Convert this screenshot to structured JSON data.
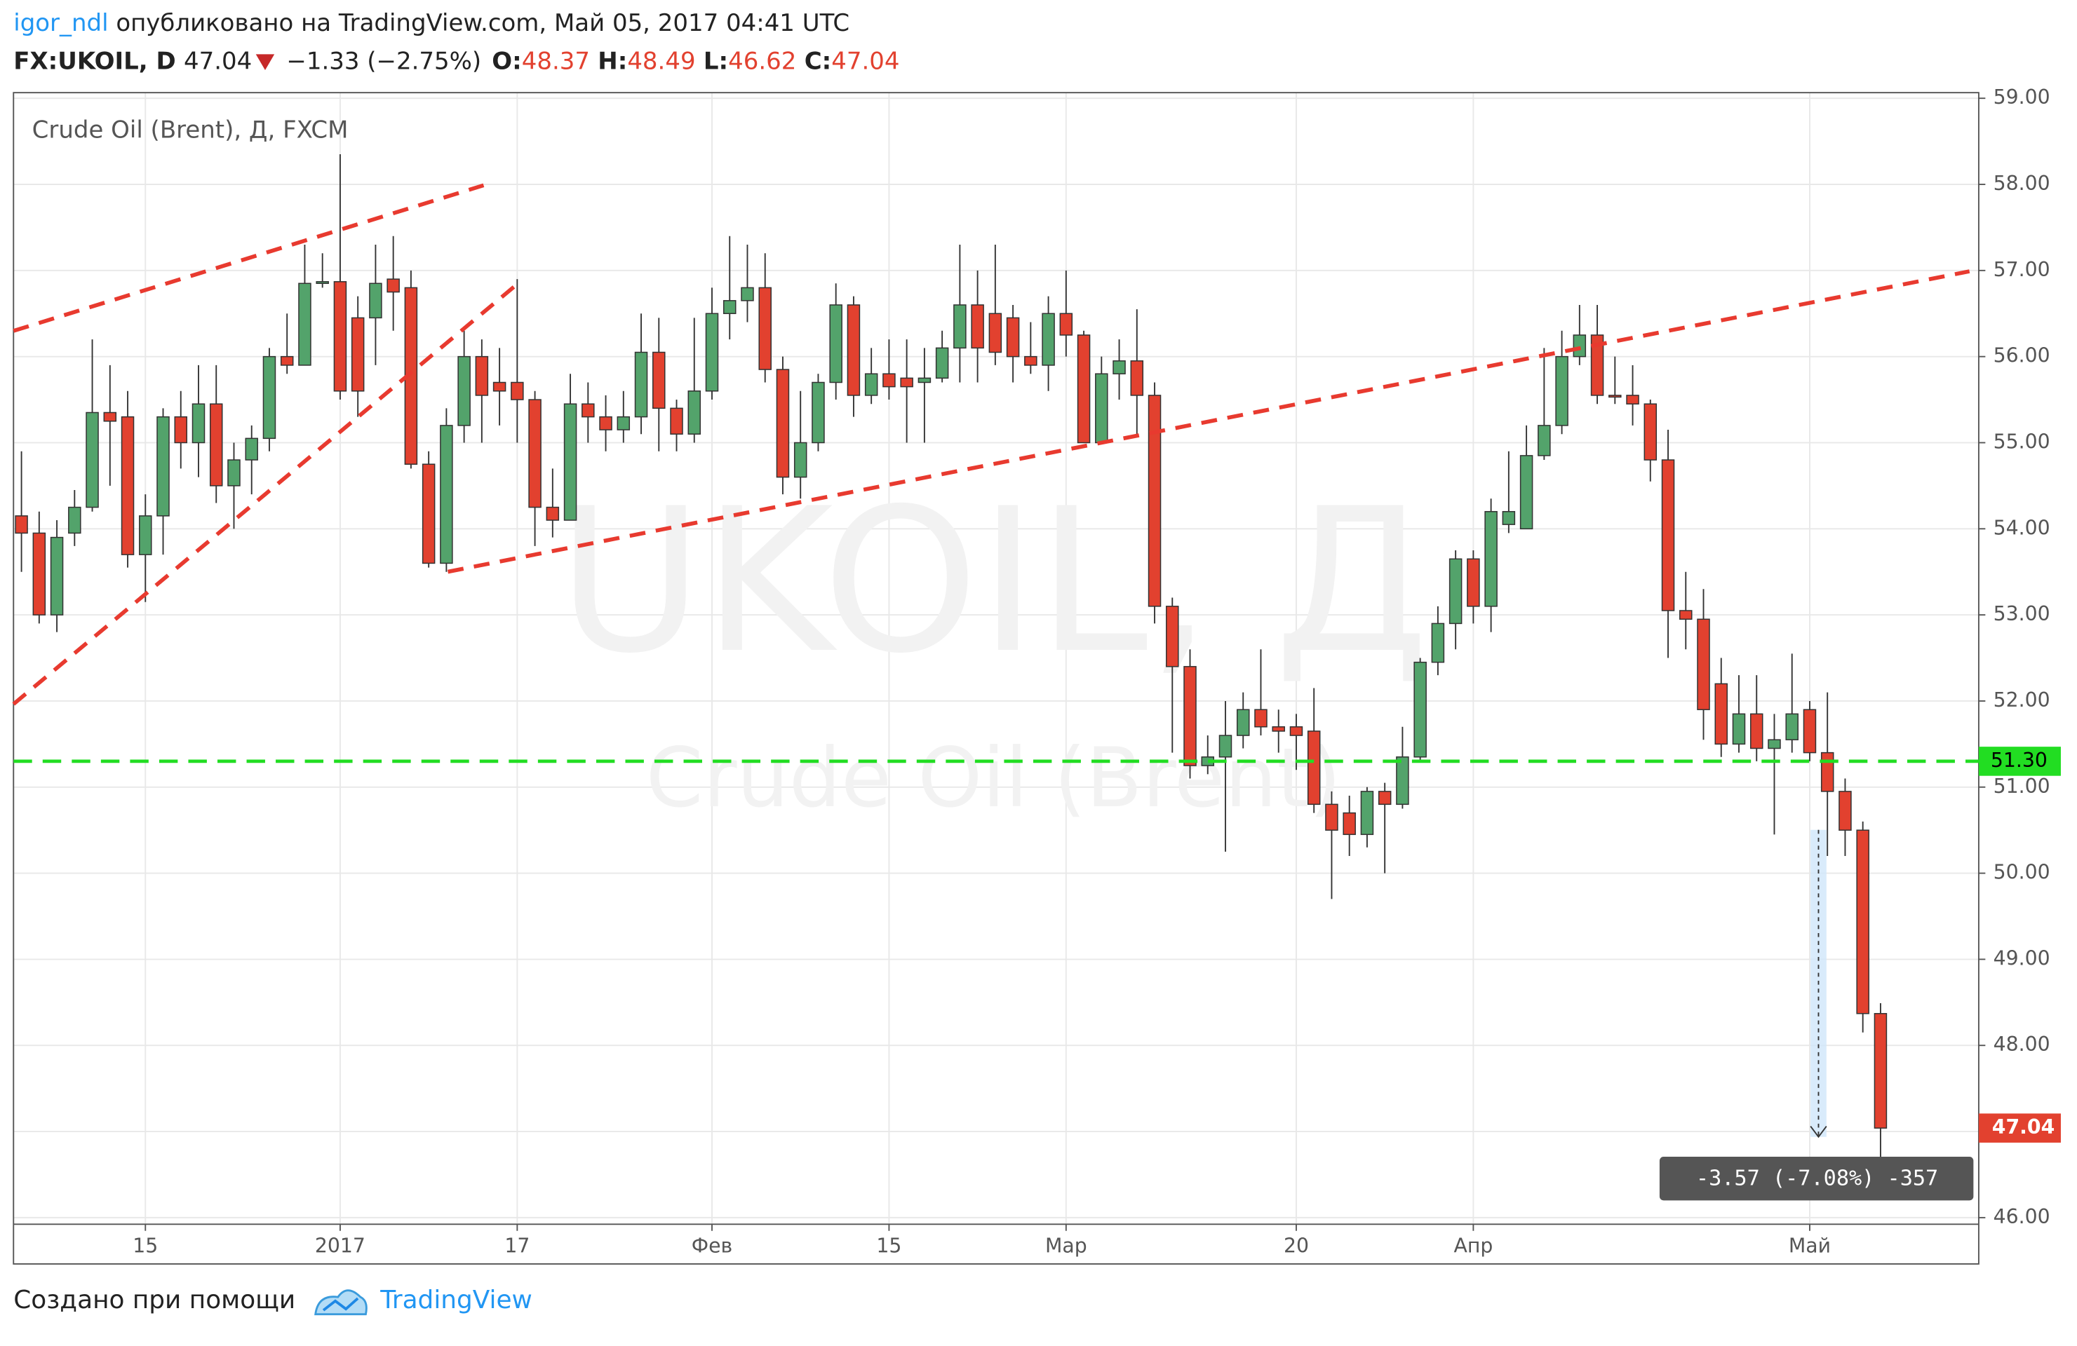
{
  "header": {
    "author": "igor_ndl",
    "published": " опубликовано на TradingView.com, Май 05, 2017 04:41 UTC",
    "symbol": "FX:UKOIL, D",
    "change": "−1.33 (−2.75%)",
    "o_label": "O:",
    "h_label": "H:",
    "l_label": "L:",
    "c_label": "C:"
  },
  "chart_data": {
    "type": "candlestick",
    "title": "Crude Oil (Brent), Д, FXCM",
    "watermark": "UKOIL, Д",
    "watermark_sub": "Crude Oil (Brent)",
    "up_color": "#53a36b",
    "down_color": "#e2412f",
    "grid": true,
    "categories": [
      null,
      null,
      null,
      null,
      null,
      null,
      null,
      "15",
      null,
      null,
      null,
      null,
      null,
      null,
      null,
      null,
      null,
      null,
      "2017",
      null,
      null,
      null,
      null,
      null,
      null,
      null,
      null,
      null,
      "17",
      null,
      null,
      null,
      null,
      null,
      null,
      null,
      null,
      null,
      null,
      "Фев",
      null,
      null,
      null,
      null,
      null,
      null,
      null,
      null,
      null,
      "15",
      null,
      null,
      null,
      null,
      null,
      null,
      null,
      null,
      null,
      "Мар",
      null,
      null,
      null,
      null,
      null,
      null,
      null,
      null,
      null,
      null,
      null,
      null,
      "20",
      null,
      null,
      null,
      null,
      null,
      null,
      null,
      null,
      null,
      "Апр",
      null,
      null,
      null,
      null,
      null,
      null,
      null,
      null,
      null,
      null,
      null,
      null,
      null,
      null,
      null,
      null,
      null,
      null,
      "Май",
      null,
      null,
      null,
      null
    ],
    "open": [
      54.15,
      53.95,
      53.0,
      53.95,
      54.25,
      55.35,
      55.3,
      53.7,
      54.15,
      55.3,
      55.0,
      55.45,
      54.5,
      54.8,
      55.05,
      56.0,
      55.9,
      56.85,
      56.87,
      56.45,
      56.45,
      56.9,
      56.8,
      54.75,
      53.6,
      55.2,
      56.0,
      55.7,
      55.7,
      55.5,
      54.25,
      54.1,
      55.45,
      55.3,
      55.15,
      55.3,
      56.05,
      55.4,
      55.1,
      55.6,
      56.5,
      56.65,
      56.8,
      55.85,
      54.6,
      55.0,
      55.7,
      56.6,
      55.55,
      55.8,
      55.75,
      55.7,
      55.75,
      56.1,
      56.6,
      56.5,
      56.45,
      56.0,
      55.9,
      56.5,
      56.25,
      55.0,
      55.8,
      55.95,
      55.55,
      53.1,
      52.4,
      51.25,
      51.35,
      51.6,
      51.9,
      51.7,
      51.7,
      51.65,
      50.8,
      50.7,
      50.45,
      50.95,
      50.8,
      51.35,
      52.45,
      52.9,
      53.65,
      53.1,
      54.05,
      54.0,
      54.85,
      55.2,
      56.0,
      56.25,
      55.55,
      55.55,
      55.45,
      54.8,
      53.05,
      52.95,
      52.2,
      51.5,
      51.85,
      51.45,
      51.55,
      51.9,
      51.4,
      50.95,
      50.5,
      48.37
    ],
    "high": [
      54.9,
      54.2,
      54.1,
      54.45,
      56.2,
      55.9,
      55.6,
      54.4,
      55.4,
      55.6,
      55.9,
      55.9,
      55.0,
      55.2,
      56.1,
      56.5,
      57.3,
      57.2,
      58.35,
      56.7,
      57.3,
      57.4,
      57.0,
      54.9,
      55.4,
      56.3,
      56.2,
      56.1,
      56.9,
      55.6,
      54.7,
      55.8,
      55.7,
      55.55,
      55.6,
      56.5,
      56.45,
      55.5,
      56.45,
      56.8,
      57.4,
      57.3,
      57.2,
      56.0,
      55.6,
      55.8,
      56.85,
      56.7,
      56.1,
      56.2,
      56.2,
      56.1,
      56.3,
      57.3,
      57.0,
      57.3,
      56.6,
      56.4,
      56.7,
      57.0,
      56.3,
      56.0,
      56.2,
      56.55,
      55.7,
      53.2,
      52.6,
      51.6,
      52.0,
      52.1,
      52.6,
      51.9,
      51.85,
      52.15,
      50.95,
      50.9,
      51.0,
      51.05,
      51.7,
      52.5,
      53.1,
      53.75,
      53.75,
      54.35,
      54.9,
      55.2,
      56.1,
      56.3,
      56.6,
      56.6,
      56.0,
      55.9,
      55.5,
      55.15,
      53.5,
      53.3,
      52.5,
      52.3,
      52.3,
      51.85,
      52.55,
      52.0,
      52.1,
      51.1,
      50.6,
      48.49
    ],
    "low": [
      53.5,
      52.9,
      52.8,
      53.8,
      54.2,
      54.5,
      53.55,
      53.15,
      53.7,
      54.7,
      54.6,
      54.3,
      54.0,
      54.4,
      54.9,
      55.8,
      55.9,
      56.8,
      55.5,
      55.3,
      55.9,
      56.3,
      54.7,
      53.55,
      53.5,
      55.0,
      55.0,
      55.2,
      55.0,
      53.8,
      53.9,
      54.1,
      55.0,
      54.9,
      55.0,
      55.1,
      54.9,
      54.9,
      55.0,
      55.5,
      56.2,
      56.4,
      55.7,
      54.4,
      54.35,
      54.9,
      55.5,
      55.3,
      55.45,
      55.5,
      55.0,
      55.0,
      55.7,
      55.7,
      55.7,
      55.9,
      55.7,
      55.8,
      55.6,
      56.0,
      55.0,
      55.0,
      55.5,
      55.1,
      52.9,
      51.4,
      51.1,
      51.15,
      50.25,
      51.45,
      51.6,
      51.4,
      51.2,
      50.7,
      49.7,
      50.2,
      50.3,
      50.0,
      50.75,
      51.3,
      52.3,
      52.6,
      52.9,
      52.8,
      53.95,
      54.0,
      54.8,
      55.1,
      55.9,
      55.45,
      55.45,
      55.2,
      54.55,
      52.5,
      52.6,
      51.55,
      51.35,
      51.4,
      51.3,
      50.45,
      51.4,
      51.3,
      50.2,
      50.2,
      48.15,
      46.62
    ],
    "close": [
      53.95,
      53.0,
      53.9,
      54.25,
      55.35,
      55.25,
      53.7,
      54.15,
      55.3,
      55.0,
      55.45,
      54.5,
      54.8,
      55.05,
      56.0,
      55.9,
      56.85,
      56.87,
      55.6,
      55.6,
      56.85,
      56.75,
      54.75,
      53.6,
      55.2,
      56.0,
      55.55,
      55.6,
      55.5,
      54.25,
      54.1,
      55.45,
      55.3,
      55.15,
      55.3,
      56.05,
      55.4,
      55.1,
      55.6,
      56.5,
      56.65,
      56.8,
      55.85,
      54.6,
      55.0,
      55.7,
      56.6,
      55.55,
      55.8,
      55.65,
      55.65,
      55.75,
      56.1,
      56.6,
      56.1,
      56.05,
      56.0,
      55.9,
      56.5,
      56.25,
      55.0,
      55.8,
      55.95,
      55.55,
      53.1,
      52.4,
      51.25,
      51.35,
      51.6,
      51.9,
      51.7,
      51.65,
      51.6,
      50.8,
      50.5,
      50.45,
      50.95,
      50.8,
      51.35,
      52.45,
      52.9,
      53.65,
      53.1,
      54.2,
      54.2,
      54.85,
      55.2,
      56.0,
      56.25,
      55.55,
      55.53,
      55.45,
      54.8,
      53.05,
      52.95,
      51.9,
      51.5,
      51.85,
      51.45,
      51.55,
      51.85,
      51.4,
      50.95,
      50.5,
      48.37,
      47.04
    ],
    "ylim": [
      46,
      59.05
    ],
    "yticks": [
      {
        "value": 46,
        "label": "46.00"
      },
      {
        "value": 47,
        "label": "47.00"
      },
      {
        "value": 48,
        "label": "48.00"
      },
      {
        "value": 49,
        "label": "49.00"
      },
      {
        "value": 50,
        "label": "50.00"
      },
      {
        "value": 51,
        "label": "51.00"
      },
      {
        "value": 52,
        "label": "52.00"
      },
      {
        "value": 53,
        "label": "53.00"
      },
      {
        "value": 54,
        "label": "54.00"
      },
      {
        "value": 55,
        "label": "55.00"
      },
      {
        "value": 56,
        "label": "56.00"
      },
      {
        "value": 57,
        "label": "57.00"
      },
      {
        "value": 58,
        "label": "58.00"
      },
      {
        "value": 59,
        "label": "59.00"
      }
    ],
    "level": {
      "value": 51.3,
      "label": "51.30",
      "color": "#22dd22"
    },
    "measure_label": "-3.57 (-7.08%) -357"
  },
  "footer": {
    "made_with": "Создано при помощи",
    "brand": "TradingView"
  }
}
